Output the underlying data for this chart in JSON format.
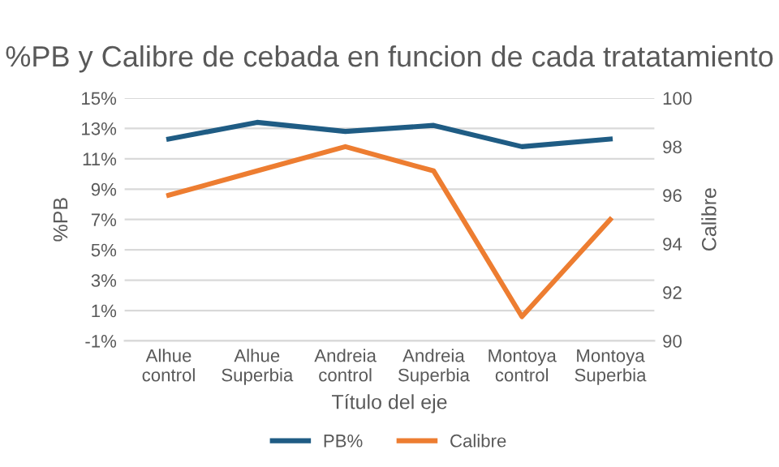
{
  "chart_data": {
    "type": "line",
    "title": "%PB y Calibre de cebada en funcion de cada tratatamiento",
    "xlabel": "Título del eje",
    "ylabel": "%PB",
    "y2label": "Calibre",
    "categories": [
      "Alhue\ncontrol",
      "Alhue\nSuperbia",
      "Andreia\ncontrol",
      "Andreia\nSuperbia",
      "Montoya\ncontrol",
      "Montoya\nSuperbia"
    ],
    "series": [
      {
        "name": "PB%",
        "color": "#1f5c84",
        "values": [
          12.3,
          13.4,
          12.8,
          13.2,
          11.8,
          12.3
        ]
      },
      {
        "name": "Calibre",
        "color": "#ed7d31",
        "axis": "y2",
        "values": [
          96,
          97,
          98,
          97,
          91,
          95
        ]
      }
    ],
    "ylim": [
      -1,
      15
    ],
    "yticks": [
      {
        "value": -1,
        "label": "-1%"
      },
      {
        "value": 1,
        "label": "1%"
      },
      {
        "value": 3,
        "label": "3%"
      },
      {
        "value": 5,
        "label": "5%"
      },
      {
        "value": 7,
        "label": "7%"
      },
      {
        "value": 9,
        "label": "9%"
      },
      {
        "value": 11,
        "label": "11%"
      },
      {
        "value": 13,
        "label": "13%"
      },
      {
        "value": 15,
        "label": "15%"
      }
    ],
    "y2lim": [
      90,
      100
    ],
    "y2ticks": [
      90,
      92,
      94,
      96,
      98,
      100
    ],
    "grid": "y",
    "legend": "bottom",
    "marker": "none",
    "line_style": "solid"
  }
}
